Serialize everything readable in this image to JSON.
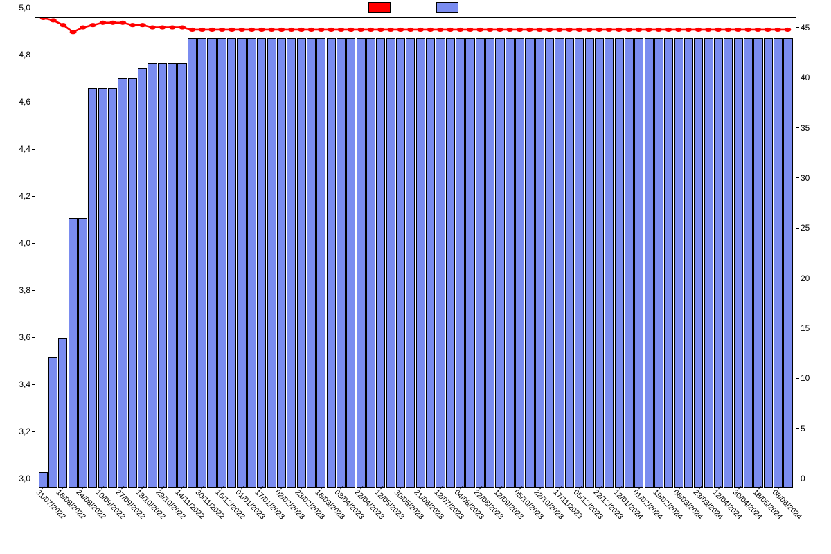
{
  "chart": {
    "type": "bar+line",
    "background_color": "#ffffff",
    "plot_border_color": "#000000",
    "font_family": "Arial",
    "legend": {
      "series1_color": "#ff0000",
      "series1_label": "",
      "series2_color": "#7a8cf0",
      "series2_label": ""
    },
    "left_axis": {
      "min": 3.0,
      "max": 5.0,
      "ticks": [
        "3,0",
        "3,2",
        "3,4",
        "3,6",
        "3,8",
        "4,0",
        "4,2",
        "4,4",
        "4,6",
        "4,8",
        "5,0"
      ],
      "tick_fontsize": 12
    },
    "right_axis": {
      "min": 0,
      "max": 47,
      "ticks": [
        0,
        5,
        10,
        15,
        20,
        25,
        30,
        35,
        40,
        45
      ],
      "tick_fontsize": 12
    },
    "x_axis": {
      "label_fontsize": 11,
      "rotation_deg": 45,
      "visible_labels": [
        {
          "idx": 0,
          "label": "31/07/2022"
        },
        {
          "idx": 2,
          "label": "16/08/2022"
        },
        {
          "idx": 4,
          "label": "24/08/2022"
        },
        {
          "idx": 6,
          "label": "10/09/2022"
        },
        {
          "idx": 8,
          "label": "27/09/2022"
        },
        {
          "idx": 10,
          "label": "13/10/2022"
        },
        {
          "idx": 12,
          "label": "29/10/2022"
        },
        {
          "idx": 14,
          "label": "14/11/2022"
        },
        {
          "idx": 16,
          "label": "30/11/2022"
        },
        {
          "idx": 18,
          "label": "16/12/2022"
        },
        {
          "idx": 20,
          "label": "01/01/2023"
        },
        {
          "idx": 22,
          "label": "17/01/2023"
        },
        {
          "idx": 24,
          "label": "02/02/2023"
        },
        {
          "idx": 26,
          "label": "23/02/2023"
        },
        {
          "idx": 28,
          "label": "16/03/2023"
        },
        {
          "idx": 30,
          "label": "03/04/2023"
        },
        {
          "idx": 32,
          "label": "22/04/2023"
        },
        {
          "idx": 34,
          "label": "12/05/2023"
        },
        {
          "idx": 36,
          "label": "30/05/2023"
        },
        {
          "idx": 38,
          "label": "21/06/2023"
        },
        {
          "idx": 40,
          "label": "12/07/2023"
        },
        {
          "idx": 42,
          "label": "04/08/2023"
        },
        {
          "idx": 44,
          "label": "22/08/2023"
        },
        {
          "idx": 46,
          "label": "12/09/2023"
        },
        {
          "idx": 48,
          "label": "05/10/2023"
        },
        {
          "idx": 50,
          "label": "22/10/2023"
        },
        {
          "idx": 52,
          "label": "17/11/2023"
        },
        {
          "idx": 54,
          "label": "05/12/2023"
        },
        {
          "idx": 56,
          "label": "22/12/2023"
        },
        {
          "idx": 58,
          "label": "12/01/2024"
        },
        {
          "idx": 60,
          "label": "01/02/2024"
        },
        {
          "idx": 62,
          "label": "19/02/2024"
        },
        {
          "idx": 64,
          "label": "06/03/2024"
        },
        {
          "idx": 66,
          "label": "23/03/2024"
        },
        {
          "idx": 68,
          "label": "12/04/2024"
        },
        {
          "idx": 70,
          "label": "30/04/2024"
        },
        {
          "idx": 72,
          "label": "18/05/2024"
        },
        {
          "idx": 74,
          "label": "08/06/2024"
        }
      ]
    },
    "bars": {
      "color": "#7a8cf0",
      "border_color": "#000000",
      "count": 76,
      "values_right_axis": [
        1.5,
        13,
        15,
        27,
        27,
        40,
        40,
        40,
        41,
        41,
        42,
        42.5,
        42.5,
        42.5,
        42.5,
        45,
        45,
        45,
        45,
        45,
        45,
        45,
        45,
        45,
        45,
        45,
        45,
        45,
        45,
        45,
        45,
        45,
        45,
        45,
        45,
        45,
        45,
        45,
        45,
        45,
        45,
        45,
        45,
        45,
        45,
        45,
        45,
        45,
        45,
        45,
        45,
        45,
        45,
        45,
        45,
        45,
        45,
        45,
        45,
        45,
        45,
        45,
        45,
        45,
        45,
        45,
        45,
        45,
        45,
        45,
        45,
        45,
        45,
        45,
        45,
        45
      ]
    },
    "line": {
      "color": "#ff0000",
      "width": 2,
      "marker_size": 4.5,
      "marker_color": "#ff0000",
      "values_left_axis": [
        5.0,
        4.99,
        4.97,
        4.94,
        4.96,
        4.97,
        4.98,
        4.98,
        4.98,
        4.97,
        4.97,
        4.96,
        4.96,
        4.96,
        4.96,
        4.95,
        4.95,
        4.95,
        4.95,
        4.95,
        4.95,
        4.95,
        4.95,
        4.95,
        4.95,
        4.95,
        4.95,
        4.95,
        4.95,
        4.95,
        4.95,
        4.95,
        4.95,
        4.95,
        4.95,
        4.95,
        4.95,
        4.95,
        4.95,
        4.95,
        4.95,
        4.95,
        4.95,
        4.95,
        4.95,
        4.95,
        4.95,
        4.95,
        4.95,
        4.95,
        4.95,
        4.95,
        4.95,
        4.95,
        4.95,
        4.95,
        4.95,
        4.95,
        4.95,
        4.95,
        4.95,
        4.95,
        4.95,
        4.95,
        4.95,
        4.95,
        4.95,
        4.95,
        4.95,
        4.95,
        4.95,
        4.95,
        4.95,
        4.95,
        4.95,
        4.95
      ]
    }
  }
}
